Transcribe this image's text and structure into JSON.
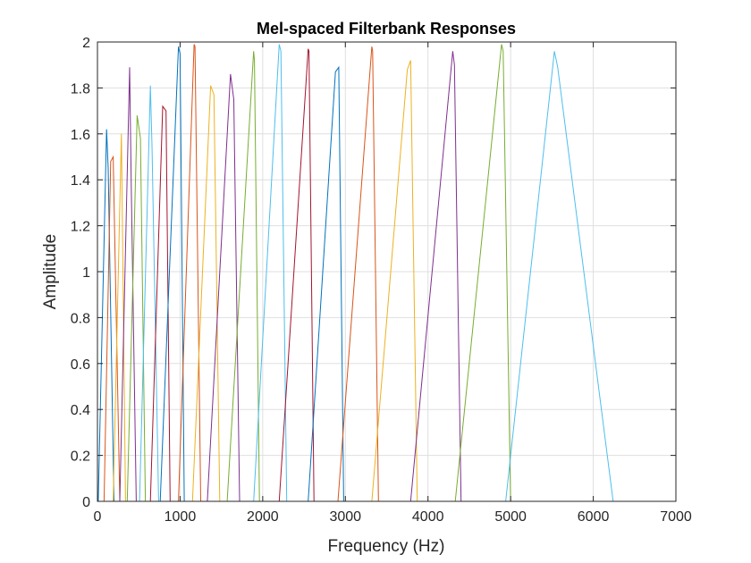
{
  "chart_data": {
    "type": "line",
    "title": "Mel-spaced Filterbank Responses",
    "xlabel": "Frequency (Hz)",
    "ylabel": "Amplitude",
    "xlim": [
      0,
      7000
    ],
    "ylim": [
      0,
      2
    ],
    "xticks": [
      0,
      1000,
      2000,
      3000,
      4000,
      5000,
      6000,
      7000
    ],
    "yticks": [
      0,
      0.2,
      0.4,
      0.6,
      0.8,
      1,
      1.2,
      1.4,
      1.6,
      1.8,
      2
    ],
    "xtick_labels": [
      "0",
      "1000",
      "2000",
      "3000",
      "4000",
      "5000",
      "6000",
      "7000"
    ],
    "ytick_labels": [
      "0",
      "0.2",
      "0.4",
      "0.6",
      "0.8",
      "1",
      "1.2",
      "1.4",
      "1.6",
      "1.8",
      "2"
    ],
    "grid": true,
    "colors": [
      "#0072BD",
      "#D95319",
      "#EDB120",
      "#7E2F8E",
      "#77AC30",
      "#4DBEEE",
      "#A2142F"
    ],
    "series": [
      {
        "x": [
          0,
          10,
          110,
          130,
          200
        ],
        "y": [
          0,
          0,
          1.62,
          1.45,
          0
        ],
        "color": "#0072BD"
      },
      {
        "x": [
          10,
          80,
          160,
          190,
          270
        ],
        "y": [
          0,
          0,
          1.48,
          1.5,
          0
        ],
        "color": "#D95319"
      },
      {
        "x": [
          120,
          190,
          290,
          340
        ],
        "y": [
          0,
          0,
          1.6,
          0
        ],
        "color": "#EDB120"
      },
      {
        "x": [
          220,
          270,
          390,
          410,
          470
        ],
        "y": [
          0,
          0,
          1.89,
          1.35,
          0
        ],
        "color": "#7E2F8E"
      },
      {
        "x": [
          300,
          360,
          480,
          520,
          580
        ],
        "y": [
          0,
          0,
          1.68,
          1.58,
          0
        ],
        "color": "#77AC30"
      },
      {
        "x": [
          460,
          510,
          640,
          660,
          740
        ],
        "y": [
          0,
          0,
          1.81,
          1.55,
          0
        ],
        "color": "#4DBEEE"
      },
      {
        "x": [
          580,
          640,
          790,
          830,
          880
        ],
        "y": [
          0,
          0,
          1.72,
          1.7,
          0
        ],
        "color": "#A2142F"
      },
      {
        "x": [
          700,
          760,
          980,
          1000,
          1050
        ],
        "y": [
          0,
          0,
          1.98,
          1.95,
          0
        ],
        "color": "#0072BD"
      },
      {
        "x": [
          920,
          980,
          1170,
          1180,
          1250
        ],
        "y": [
          0,
          0,
          1.99,
          1.98,
          0
        ],
        "color": "#D95319"
      },
      {
        "x": [
          1080,
          1150,
          1370,
          1410,
          1480
        ],
        "y": [
          0,
          0,
          1.81,
          1.77,
          0
        ],
        "color": "#EDB120"
      },
      {
        "x": [
          1260,
          1330,
          1610,
          1650,
          1720
        ],
        "y": [
          0,
          0,
          1.86,
          1.75,
          0
        ],
        "color": "#7E2F8E"
      },
      {
        "x": [
          1500,
          1570,
          1890,
          1900,
          1960
        ],
        "y": [
          0,
          0,
          1.96,
          1.92,
          0
        ],
        "color": "#77AC30"
      },
      {
        "x": [
          1820,
          1890,
          2200,
          2220,
          2290
        ],
        "y": [
          0,
          0,
          1.99,
          1.96,
          0
        ],
        "color": "#4DBEEE"
      },
      {
        "x": [
          2130,
          2200,
          2550,
          2560,
          2620
        ],
        "y": [
          0,
          0,
          1.97,
          1.96,
          0
        ],
        "color": "#A2142F"
      },
      {
        "x": [
          2470,
          2550,
          2880,
          2920,
          2980
        ],
        "y": [
          0,
          0,
          1.87,
          1.89,
          0
        ],
        "color": "#0072BD"
      },
      {
        "x": [
          2830,
          2910,
          3320,
          3330,
          3400
        ],
        "y": [
          0,
          0,
          1.98,
          1.96,
          0
        ],
        "color": "#D95319"
      },
      {
        "x": [
          3240,
          3320,
          3750,
          3790,
          3870
        ],
        "y": [
          0,
          0,
          1.88,
          1.92,
          0
        ],
        "color": "#EDB120"
      },
      {
        "x": [
          3700,
          3790,
          4300,
          4320,
          4400
        ],
        "y": [
          0,
          0,
          1.96,
          1.9,
          0
        ],
        "color": "#7E2F8E"
      },
      {
        "x": [
          4250,
          4330,
          4890,
          4910,
          5000
        ],
        "y": [
          0,
          0,
          1.99,
          1.96,
          0
        ],
        "color": "#77AC30"
      },
      {
        "x": [
          4850,
          4940,
          5530,
          5570,
          6240,
          6250
        ],
        "y": [
          0,
          0,
          1.96,
          1.89,
          0,
          0
        ],
        "color": "#4DBEEE"
      },
      {
        "x": [
          4900,
          5540,
          5580,
          5600
        ],
        "y": [
          0,
          0,
          0,
          0
        ],
        "color": "#A2142F"
      }
    ]
  }
}
